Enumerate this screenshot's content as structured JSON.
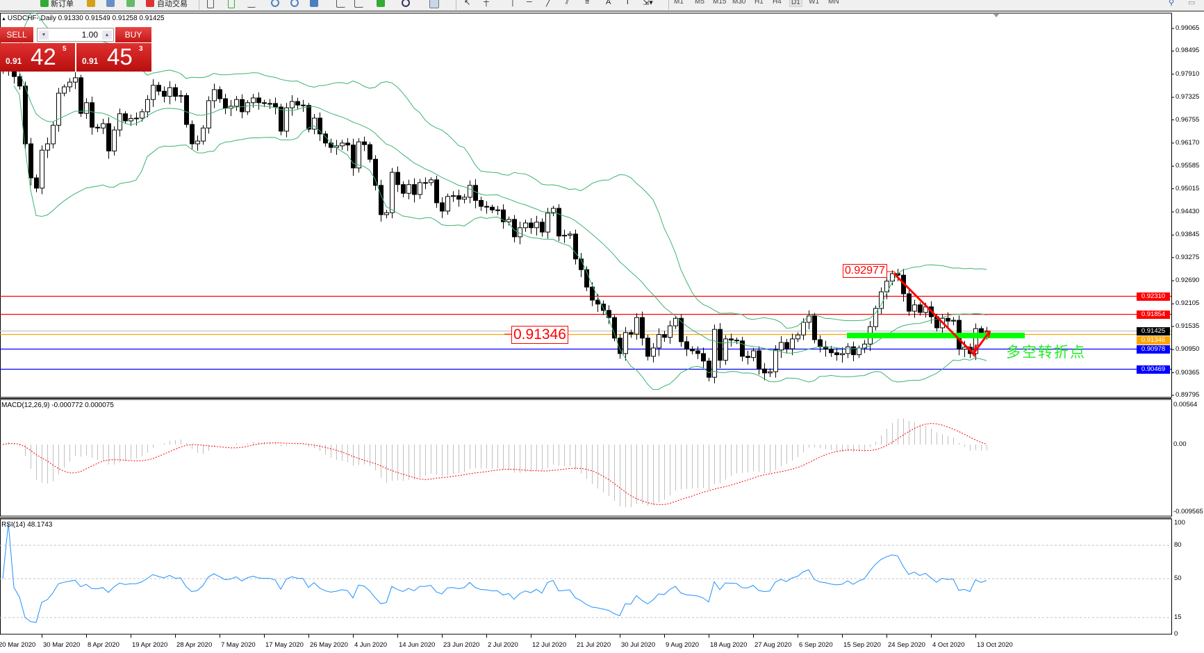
{
  "toolbar": {
    "new_order": "新订单",
    "auto_trading": "自动交易",
    "timeframes": [
      "M1",
      "M5",
      "M15",
      "M30",
      "H1",
      "H4",
      "D1",
      "W1",
      "MN"
    ],
    "active_timeframe": "D1"
  },
  "chart_header": {
    "symbol": "USDCHF-,Daily",
    "ohlc": "0.91330 0.91549 0.91258 0.91425"
  },
  "trade_panel": {
    "sell_label": "SELL",
    "buy_label": "BUY",
    "lot": "1.00",
    "sell_price": {
      "prefix": "0.91",
      "big": "42",
      "small": "5"
    },
    "buy_price": {
      "prefix": "0.91",
      "big": "45",
      "small": "3"
    }
  },
  "price_axis": [
    "0.99065",
    "0.98495",
    "0.97910",
    "0.97325",
    "0.96755",
    "0.96170",
    "0.95585",
    "0.95015",
    "0.94430",
    "0.93845",
    "0.93275",
    "0.92690",
    "0.92105",
    "0.91535",
    "0.90950",
    "0.90365",
    "0.89795"
  ],
  "levels": [
    {
      "price": "0.92310",
      "color": "#ff0000"
    },
    {
      "price": "0.91854",
      "color": "#ff0000"
    },
    {
      "price": "0.91425",
      "color": "#c0c0c0",
      "label_bg": "#000000"
    },
    {
      "price": "0.91346",
      "color": "#ffa500"
    },
    {
      "price": "0.90978",
      "color": "#0000ff"
    },
    {
      "price": "0.90469",
      "color": "#0000ff"
    }
  ],
  "annotations": {
    "high_label": "0.92977",
    "level_label": "0.91346",
    "turn_text": "多空转折点",
    "arrow_color": "#ff0000",
    "zone_color": "#00ff00"
  },
  "macd": {
    "header": "MACD(12,26,9) -0.000772 0.000075",
    "axis": [
      "0.00564",
      "0.00",
      "-0.009565"
    ]
  },
  "rsi": {
    "header": "RSI(14) 48.1743",
    "axis": [
      "100",
      "80",
      "50",
      "15",
      "0"
    ]
  },
  "date_axis": [
    {
      "label": "20 Mar 2020",
      "bar": -1
    },
    {
      "label": "30 Mar 2020",
      "bar": 7
    },
    {
      "label": "8 Apr 2020",
      "bar": 15
    },
    {
      "label": "19 Apr 2020",
      "bar": 23
    },
    {
      "label": "28 Apr 2020",
      "bar": 31
    },
    {
      "label": "7 May 2020",
      "bar": 39
    },
    {
      "label": "17 May 2020",
      "bar": 47
    },
    {
      "label": "26 May 2020",
      "bar": 55
    },
    {
      "label": "4 Jun 2020",
      "bar": 63
    },
    {
      "label": "14 Jun 2020",
      "bar": 71
    },
    {
      "label": "23 Jun 2020",
      "bar": 79
    },
    {
      "label": "2 Jul 2020",
      "bar": 87
    },
    {
      "label": "12 Jul 2020",
      "bar": 95
    },
    {
      "label": "21 Jul 2020",
      "bar": 103
    },
    {
      "label": "30 Jul 2020",
      "bar": 111
    },
    {
      "label": "9 Aug 2020",
      "bar": 119
    },
    {
      "label": "18 Aug 2020",
      "bar": 127
    },
    {
      "label": "27 Aug 2020",
      "bar": 135
    },
    {
      "label": "6 Sep 2020",
      "bar": 143
    },
    {
      "label": "15 Sep 2020",
      "bar": 151
    },
    {
      "label": "24 Sep 2020",
      "bar": 159
    },
    {
      "label": "4 Oct 2020",
      "bar": 167
    },
    {
      "label": "13 Oct 2020",
      "bar": 175
    }
  ],
  "chart_data": {
    "type": "candlestick",
    "symbol": "USDCHF",
    "timeframe": "Daily",
    "ylim": [
      0.89795,
      0.99065
    ],
    "indicators": [
      "Bollinger Bands (20,2)",
      "MACD(12,26,9)",
      "RSI(14)"
    ],
    "closes": [
      0.98,
      0.984,
      0.9785,
      0.9761,
      0.9615,
      0.9529,
      0.9503,
      0.9599,
      0.9615,
      0.9662,
      0.9743,
      0.9759,
      0.9771,
      0.9782,
      0.9692,
      0.9719,
      0.9657,
      0.9655,
      0.9666,
      0.9597,
      0.965,
      0.9691,
      0.9673,
      0.9679,
      0.968,
      0.9696,
      0.9727,
      0.9763,
      0.9748,
      0.9735,
      0.9757,
      0.9735,
      0.9737,
      0.9664,
      0.9615,
      0.9622,
      0.9655,
      0.9724,
      0.9752,
      0.9729,
      0.9705,
      0.971,
      0.9727,
      0.9696,
      0.9719,
      0.9731,
      0.9719,
      0.9717,
      0.9717,
      0.9708,
      0.9647,
      0.9706,
      0.9722,
      0.9713,
      0.9712,
      0.9652,
      0.968,
      0.964,
      0.9617,
      0.9606,
      0.961,
      0.9617,
      0.9612,
      0.9554,
      0.962,
      0.9613,
      0.9576,
      0.951,
      0.9436,
      0.9441,
      0.9543,
      0.9512,
      0.949,
      0.9512,
      0.9487,
      0.9517,
      0.9517,
      0.9524,
      0.9466,
      0.9445,
      0.9482,
      0.9484,
      0.9475,
      0.948,
      0.951,
      0.9472,
      0.9457,
      0.9455,
      0.9448,
      0.9448,
      0.9418,
      0.9424,
      0.938,
      0.9403,
      0.9415,
      0.9403,
      0.9417,
      0.9392,
      0.944,
      0.9452,
      0.9382,
      0.9384,
      0.9387,
      0.9324,
      0.9297,
      0.9253,
      0.922,
      0.921,
      0.9194,
      0.9176,
      0.9124,
      0.9085,
      0.9138,
      0.9134,
      0.9176,
      0.9124,
      0.9078,
      0.9099,
      0.9133,
      0.9126,
      0.9155,
      0.9174,
      0.9115,
      0.9096,
      0.9092,
      0.9085,
      0.9066,
      0.9025,
      0.9146,
      0.9068,
      0.9122,
      0.9119,
      0.9117,
      0.9078,
      0.9075,
      0.9092,
      0.9046,
      0.9036,
      0.9039,
      0.9094,
      0.9113,
      0.9097,
      0.9122,
      0.9132,
      0.9164,
      0.918,
      0.912,
      0.9102,
      0.9096,
      0.9087,
      0.9082,
      0.9085,
      0.9102,
      0.9082,
      0.9099,
      0.9109,
      0.9153,
      0.9199,
      0.9241,
      0.9268,
      0.9287,
      0.9283,
      0.9236,
      0.9192,
      0.9208,
      0.9189,
      0.9203,
      0.9178,
      0.915,
      0.9174,
      0.9167,
      0.9169,
      0.9096,
      0.9101,
      0.9085,
      0.9148,
      0.9131,
      0.9142
    ]
  }
}
